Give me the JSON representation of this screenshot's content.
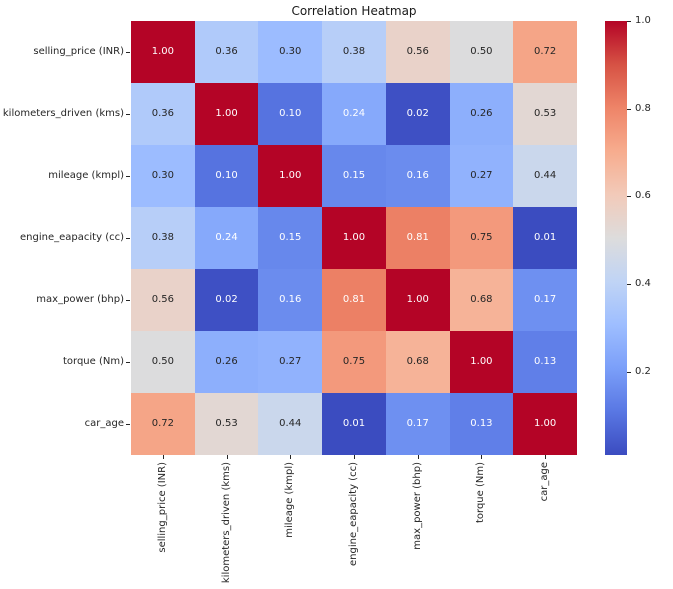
{
  "figure": {
    "background": "#ffffff",
    "text_color": "#262626"
  },
  "chart_data": {
    "type": "heatmap",
    "title": "Correlation Heatmap",
    "labels": [
      "selling_price (INR)",
      "kilometers_driven (kms)",
      "mileage (kmpl)",
      "engine_eapacity (cc)",
      "max_power (bhp)",
      "torque (Nm)",
      "car_age"
    ],
    "matrix": [
      [
        1.0,
        0.36,
        0.3,
        0.38,
        0.56,
        0.5,
        0.72
      ],
      [
        0.36,
        1.0,
        0.1,
        0.24,
        0.02,
        0.26,
        0.53
      ],
      [
        0.3,
        0.1,
        1.0,
        0.15,
        0.16,
        0.27,
        0.44
      ],
      [
        0.38,
        0.24,
        0.15,
        1.0,
        0.81,
        0.75,
        0.01
      ],
      [
        0.56,
        0.02,
        0.16,
        0.81,
        1.0,
        0.68,
        0.17
      ],
      [
        0.5,
        0.26,
        0.27,
        0.75,
        0.68,
        1.0,
        0.13
      ],
      [
        0.72,
        0.53,
        0.44,
        0.01,
        0.17,
        0.13,
        1.0
      ]
    ],
    "value_decimals": 2,
    "vmin": 0.01,
    "vmax": 1.0,
    "colormap": {
      "name": "coolwarm",
      "anchors": [
        "#3b4cc0",
        "#5977e3",
        "#7b9ff9",
        "#9ebeff",
        "#c0d4f5",
        "#dddcdc",
        "#f2cab9",
        "#f7ac8e",
        "#ee8468",
        "#d65244",
        "#b40426"
      ]
    },
    "annotation_text_colors": {
      "on_dark": "#ffffff",
      "on_light": "#262626"
    },
    "colorbar": {
      "ticks": [
        {
          "label": "1.0",
          "value": 1.0
        },
        {
          "label": "0.8",
          "value": 0.8
        },
        {
          "label": "0.6",
          "value": 0.6
        },
        {
          "label": "0.4",
          "value": 0.4
        },
        {
          "label": "0.2",
          "value": 0.2
        }
      ]
    },
    "grid": false,
    "legend": "colorbar-right"
  }
}
